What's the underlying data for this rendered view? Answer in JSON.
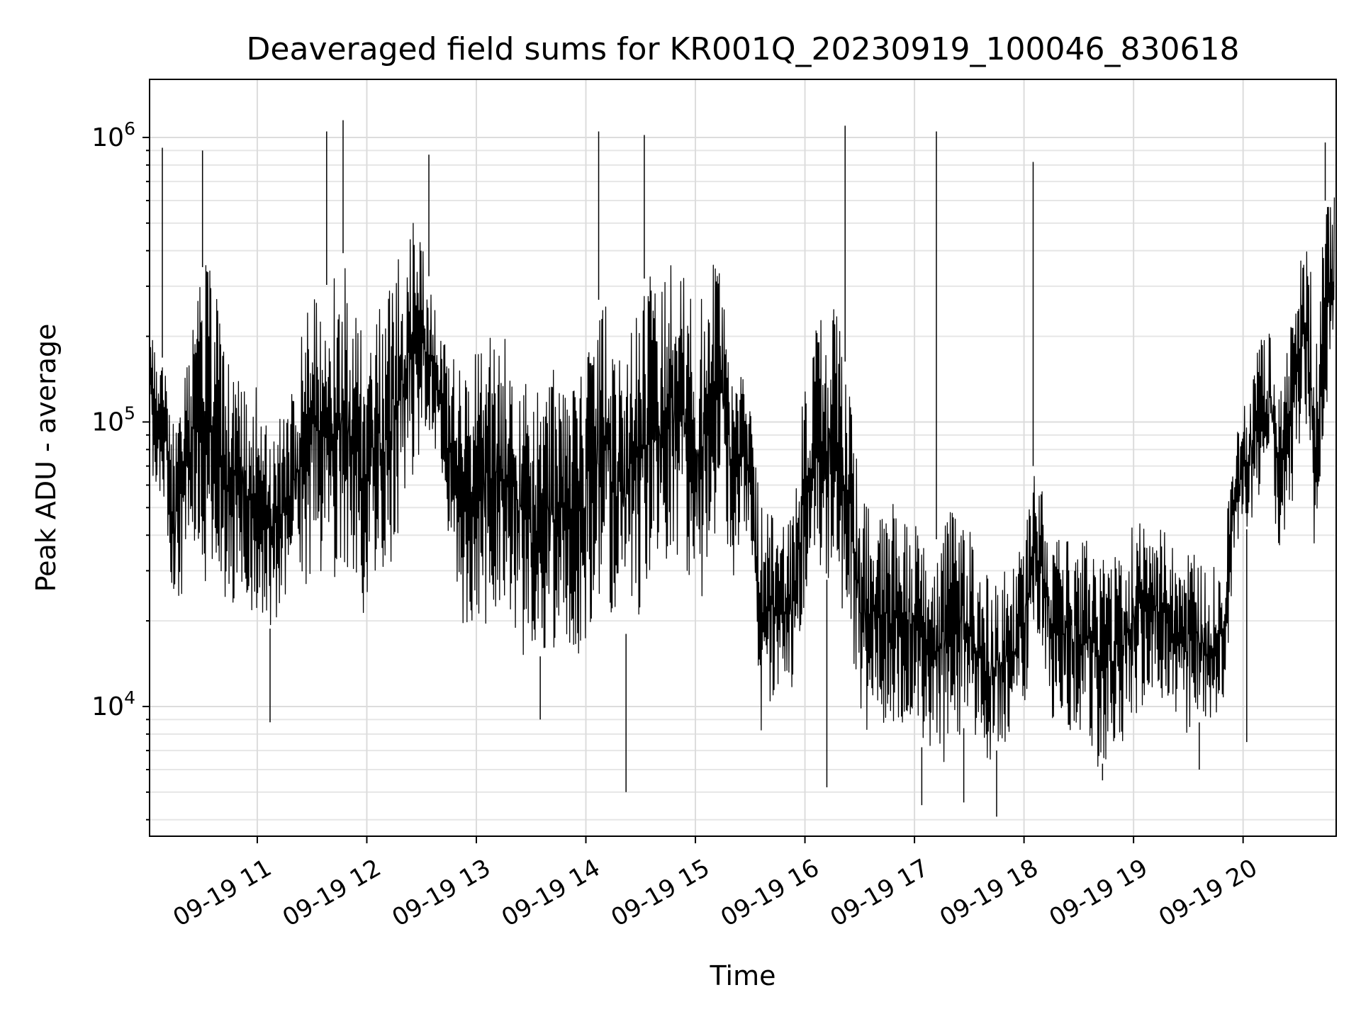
{
  "chart_data": {
    "type": "line",
    "title": "Deaveraged field sums for KR001Q_20230919_100046_830618",
    "xlabel": "Time",
    "ylabel": "Peak ADU - average",
    "yscale": "log",
    "ylim": [
      3500,
      1600000
    ],
    "xlim": [
      "2023-09-19 10:01",
      "2023-09-19 20:51"
    ],
    "grid": true,
    "legend": "none",
    "line_color": "#000000",
    "x_ticks": [
      "2023-09-19 11:00",
      "2023-09-19 12:00",
      "2023-09-19 13:00",
      "2023-09-19 14:00",
      "2023-09-19 15:00",
      "2023-09-19 16:00",
      "2023-09-19 17:00",
      "2023-09-19 18:00",
      "2023-09-19 19:00",
      "2023-09-19 20:00"
    ],
    "x_tick_labels": [
      "09-19 11",
      "09-19 12",
      "09-19 13",
      "09-19 14",
      "09-19 15",
      "09-19 16",
      "09-19 17",
      "09-19 18",
      "09-19 19",
      "09-19 20"
    ],
    "y_ticks": [
      10000,
      100000,
      1000000
    ],
    "y_tick_labels": [
      {
        "base": "10",
        "exp": "4"
      },
      {
        "base": "10",
        "exp": "5"
      },
      {
        "base": "10",
        "exp": "6"
      }
    ],
    "series": [
      {
        "x": [
          "2023-09-19 10:01",
          "2023-09-19 10:05",
          "2023-09-19 10:10",
          "2023-09-19 10:15",
          "2023-09-19 10:20",
          "2023-09-19 10:25",
          "2023-09-19 10:30",
          "2023-09-19 10:35",
          "2023-09-19 10:40",
          "2023-09-19 10:45",
          "2023-09-19 10:50",
          "2023-09-19 10:55",
          "2023-09-19 11:00",
          "2023-09-19 11:05",
          "2023-09-19 11:10",
          "2023-09-19 11:15",
          "2023-09-19 11:20",
          "2023-09-19 11:25",
          "2023-09-19 11:30",
          "2023-09-19 11:35",
          "2023-09-19 11:40",
          "2023-09-19 11:45",
          "2023-09-19 11:50",
          "2023-09-19 11:55",
          "2023-09-19 12:00",
          "2023-09-19 12:05",
          "2023-09-19 12:10",
          "2023-09-19 12:15",
          "2023-09-19 12:20",
          "2023-09-19 12:25",
          "2023-09-19 12:30",
          "2023-09-19 12:35",
          "2023-09-19 12:40",
          "2023-09-19 12:45",
          "2023-09-19 12:50",
          "2023-09-19 12:55",
          "2023-09-19 13:00",
          "2023-09-19 13:05",
          "2023-09-19 13:10",
          "2023-09-19 13:15",
          "2023-09-19 13:20",
          "2023-09-19 13:25",
          "2023-09-19 13:30",
          "2023-09-19 13:35",
          "2023-09-19 13:40",
          "2023-09-19 13:45",
          "2023-09-19 13:50",
          "2023-09-19 13:55",
          "2023-09-19 14:00",
          "2023-09-19 14:05",
          "2023-09-19 14:10",
          "2023-09-19 14:15",
          "2023-09-19 14:20",
          "2023-09-19 14:25",
          "2023-09-19 14:30",
          "2023-09-19 14:35",
          "2023-09-19 14:40",
          "2023-09-19 14:45",
          "2023-09-19 14:50",
          "2023-09-19 14:55",
          "2023-09-19 15:00",
          "2023-09-19 15:05",
          "2023-09-19 15:10",
          "2023-09-19 15:15",
          "2023-09-19 15:20",
          "2023-09-19 15:25",
          "2023-09-19 15:30",
          "2023-09-19 15:35",
          "2023-09-19 15:40",
          "2023-09-19 15:45",
          "2023-09-19 15:50",
          "2023-09-19 15:55",
          "2023-09-19 16:00",
          "2023-09-19 16:05",
          "2023-09-19 16:10",
          "2023-09-19 16:15",
          "2023-09-19 16:20",
          "2023-09-19 16:25",
          "2023-09-19 16:30",
          "2023-09-19 16:35",
          "2023-09-19 16:40",
          "2023-09-19 16:45",
          "2023-09-19 16:50",
          "2023-09-19 16:55",
          "2023-09-19 17:00",
          "2023-09-19 17:05",
          "2023-09-19 17:10",
          "2023-09-19 17:15",
          "2023-09-19 17:20",
          "2023-09-19 17:25",
          "2023-09-19 17:30",
          "2023-09-19 17:35",
          "2023-09-19 17:40",
          "2023-09-19 17:45",
          "2023-09-19 17:50",
          "2023-09-19 17:55",
          "2023-09-19 18:00",
          "2023-09-19 18:05",
          "2023-09-19 18:10",
          "2023-09-19 18:15",
          "2023-09-19 18:20",
          "2023-09-19 18:25",
          "2023-09-19 18:30",
          "2023-09-19 18:35",
          "2023-09-19 18:40",
          "2023-09-19 18:45",
          "2023-09-19 18:50",
          "2023-09-19 18:55",
          "2023-09-19 19:00",
          "2023-09-19 19:05",
          "2023-09-19 19:10",
          "2023-09-19 19:15",
          "2023-09-19 19:20",
          "2023-09-19 19:25",
          "2023-09-19 19:30",
          "2023-09-19 19:35",
          "2023-09-19 19:40",
          "2023-09-19 19:45",
          "2023-09-19 19:50",
          "2023-09-19 19:55",
          "2023-09-19 20:00",
          "2023-09-19 20:05",
          "2023-09-19 20:10",
          "2023-09-19 20:15",
          "2023-09-19 20:20",
          "2023-09-19 20:25",
          "2023-09-19 20:30",
          "2023-09-19 20:35",
          "2023-09-19 20:40",
          "2023-09-19 20:45",
          "2023-09-19 20:50"
        ],
        "low": [
          75000,
          55000,
          45000,
          15000,
          30000,
          35000,
          28000,
          25000,
          28000,
          18000,
          25000,
          22000,
          20000,
          18000,
          20000,
          25000,
          22000,
          24000,
          30000,
          28000,
          30000,
          22000,
          25000,
          18000,
          20000,
          28000,
          30000,
          32000,
          40000,
          60000,
          80000,
          90000,
          70000,
          35000,
          20000,
          18000,
          22000,
          18000,
          20000,
          18000,
          20000,
          15000,
          14000,
          15000,
          17000,
          15000,
          17000,
          14000,
          17000,
          22000,
          24000,
          20000,
          18000,
          18000,
          20000,
          20000,
          25000,
          35000,
          30000,
          30000,
          22000,
          25000,
          30000,
          40000,
          25000,
          35000,
          40000,
          8000,
          8000,
          12000,
          10000,
          9000,
          25000,
          28000,
          30000,
          25000,
          20000,
          18000,
          9000,
          8000,
          9000,
          8000,
          9000,
          8000,
          8000,
          7000,
          5000,
          6000,
          7000,
          8000,
          9000,
          7000,
          6000,
          7000,
          7500,
          8000,
          9000,
          20000,
          15000,
          9000,
          8000,
          8000,
          8000,
          7500,
          6000,
          6500,
          7000,
          7500,
          9000,
          10000,
          11000,
          10000,
          11000,
          8000,
          8000,
          9000,
          8000,
          9000,
          10000,
          35000,
          40000,
          45000,
          50000,
          55000,
          35000,
          40000,
          80000,
          100000,
          15000,
          100000,
          150000
        ],
        "high": [
          300000,
          200000,
          150000,
          120000,
          180000,
          250000,
          350000,
          380000,
          250000,
          150000,
          200000,
          150000,
          130000,
          100000,
          100000,
          120000,
          150000,
          250000,
          300000,
          280000,
          320000,
          400000,
          380000,
          300000,
          200000,
          250000,
          250000,
          400000,
          450000,
          550000,
          450000,
          300000,
          200000,
          180000,
          160000,
          150000,
          180000,
          200000,
          200000,
          220000,
          180000,
          150000,
          120000,
          130000,
          140000,
          180000,
          160000,
          140000,
          200000,
          250000,
          300000,
          200000,
          150000,
          250000,
          300000,
          350000,
          400000,
          350000,
          400000,
          300000,
          250000,
          300000,
          400000,
          350000,
          200000,
          150000,
          120000,
          60000,
          50000,
          50000,
          40000,
          70000,
          150000,
          200000,
          250000,
          300000,
          200000,
          120000,
          60000,
          50000,
          45000,
          50000,
          60000,
          50000,
          50000,
          40000,
          35000,
          45000,
          50000,
          55000,
          45000,
          35000,
          30000,
          30000,
          30000,
          35000,
          40000,
          70000,
          60000,
          45000,
          40000,
          40000,
          40000,
          40000,
          35000,
          35000,
          35000,
          40000,
          45000,
          50000,
          50000,
          45000,
          40000,
          30000,
          35000,
          35000,
          30000,
          35000,
          40000,
          80000,
          120000,
          150000,
          200000,
          250000,
          150000,
          200000,
          350000,
          500000,
          300000,
          600000,
          700000
        ]
      }
    ],
    "spikes": [
      {
        "x": "2023-09-19 10:08",
        "y": 920000
      },
      {
        "x": "2023-09-19 10:30",
        "y": 900000
      },
      {
        "x": "2023-09-19 11:38",
        "y": 1050000
      },
      {
        "x": "2023-09-19 11:47",
        "y": 1150000
      },
      {
        "x": "2023-09-19 12:34",
        "y": 870000
      },
      {
        "x": "2023-09-19 14:07",
        "y": 1050000
      },
      {
        "x": "2023-09-19 14:32",
        "y": 1020000
      },
      {
        "x": "2023-09-19 16:22",
        "y": 1100000
      },
      {
        "x": "2023-09-19 17:12",
        "y": 1050000
      },
      {
        "x": "2023-09-19 18:05",
        "y": 820000
      },
      {
        "x": "2023-09-19 20:45",
        "y": 960000
      },
      {
        "x": "2023-09-19 11:07",
        "y": 8800
      },
      {
        "x": "2023-09-19 13:35",
        "y": 9000
      },
      {
        "x": "2023-09-19 14:22",
        "y": 5000
      },
      {
        "x": "2023-09-19 16:12",
        "y": 5200
      },
      {
        "x": "2023-09-19 17:04",
        "y": 4500
      },
      {
        "x": "2023-09-19 17:27",
        "y": 4600
      },
      {
        "x": "2023-09-19 17:45",
        "y": 4100
      },
      {
        "x": "2023-09-19 18:43",
        "y": 5500
      },
      {
        "x": "2023-09-19 19:36",
        "y": 6000
      },
      {
        "x": "2023-09-19 20:02",
        "y": 7500
      }
    ]
  }
}
